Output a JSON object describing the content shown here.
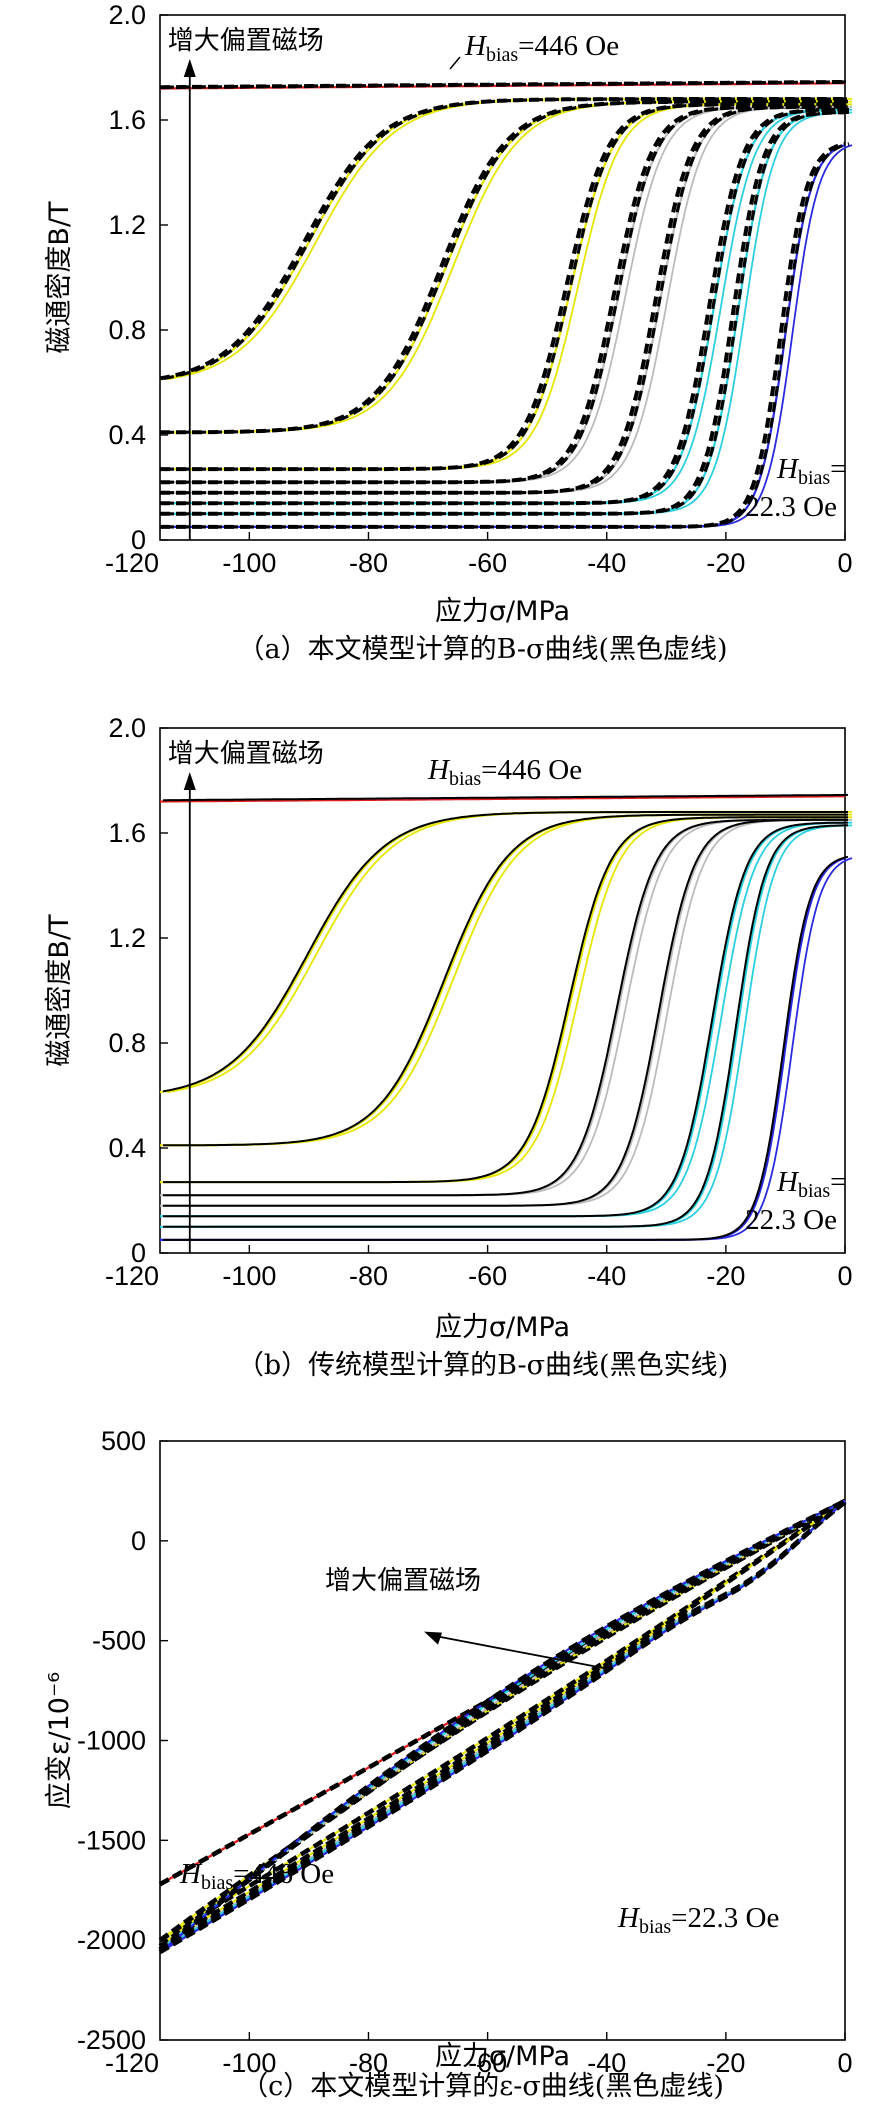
{
  "chart_data": [
    {
      "id": "a",
      "type": "line",
      "caption": "（a）本文模型计算的B-σ曲线(黑色虚线)",
      "xlabel": "应力σ/MPa",
      "ylabel": "磁通密度B/T",
      "xlim": [
        -115,
        0
      ],
      "ylim": [
        0,
        2.0
      ],
      "xticks": [
        "-120",
        "-100",
        "-80",
        "-60",
        "-40",
        "-20",
        "0"
      ],
      "yticks": [
        "0",
        "0.4",
        "0.8",
        "1.2",
        "1.6",
        "2.0"
      ],
      "annotations": {
        "arrow_label": "增大偏置磁场",
        "hbias_high": "446 Oe",
        "hbias_low": "22.3 Oe"
      },
      "model_style": "dashed",
      "series": [
        {
          "color": "#e02020",
          "b0": 1.72,
          "b1": 1.74,
          "center": null,
          "width": null
        },
        {
          "color": "#e6e600",
          "b0": 0.59,
          "b1": 1.68,
          "center": -90,
          "width": 6.5
        },
        {
          "color": "#e6e600",
          "b0": 0.41,
          "b1": 1.67,
          "center": -67,
          "width": 5.5
        },
        {
          "color": "#e6e600",
          "b0": 0.27,
          "b1": 1.66,
          "center": -46,
          "width": 3.5
        },
        {
          "color": "#bbbbbb",
          "b0": 0.22,
          "b1": 1.65,
          "center": -38,
          "width": 3.2
        },
        {
          "color": "#bbbbbb",
          "b0": 0.18,
          "b1": 1.65,
          "center": -31,
          "width": 3.0
        },
        {
          "color": "#2ad0e0",
          "b0": 0.14,
          "b1": 1.64,
          "center": -22,
          "width": 2.8
        },
        {
          "color": "#2ad0e0",
          "b0": 0.1,
          "b1": 1.63,
          "center": -18,
          "width": 2.5
        },
        {
          "color": "#2a2ae0",
          "b0": 0.05,
          "b1": 1.52,
          "center": -10,
          "width": 2.2
        }
      ]
    },
    {
      "id": "b",
      "type": "line",
      "caption": "（b）传统模型计算的B-σ曲线(黑色实线)",
      "xlabel": "应力σ/MPa",
      "ylabel": "磁通密度B/T",
      "xlim": [
        -115,
        0
      ],
      "ylim": [
        0,
        2.0
      ],
      "xticks": [
        "-120",
        "-100",
        "-80",
        "-60",
        "-40",
        "-20",
        "0"
      ],
      "yticks": [
        "0",
        "0.4",
        "0.8",
        "1.2",
        "1.6",
        "2.0"
      ],
      "annotations": {
        "arrow_label": "增大偏置磁场",
        "hbias_high": "446 Oe",
        "hbias_low": "22.3 Oe"
      },
      "model_style": "solid",
      "series": [
        {
          "color": "#e02020",
          "b0": 1.72,
          "b1": 1.74,
          "center": null,
          "width": null
        },
        {
          "color": "#e6e600",
          "b0": 0.59,
          "b1": 1.68,
          "center": -90,
          "width": 6.5
        },
        {
          "color": "#e6e600",
          "b0": 0.41,
          "b1": 1.67,
          "center": -67,
          "width": 5.5
        },
        {
          "color": "#e6e600",
          "b0": 0.27,
          "b1": 1.66,
          "center": -46,
          "width": 3.5
        },
        {
          "color": "#bbbbbb",
          "b0": 0.22,
          "b1": 1.65,
          "center": -38,
          "width": 3.2
        },
        {
          "color": "#bbbbbb",
          "b0": 0.18,
          "b1": 1.65,
          "center": -31,
          "width": 3.0
        },
        {
          "color": "#2ad0e0",
          "b0": 0.14,
          "b1": 1.64,
          "center": -22,
          "width": 2.8
        },
        {
          "color": "#2ad0e0",
          "b0": 0.1,
          "b1": 1.63,
          "center": -18,
          "width": 2.5
        },
        {
          "color": "#2a2ae0",
          "b0": 0.05,
          "b1": 1.52,
          "center": -10,
          "width": 2.2
        }
      ]
    },
    {
      "id": "c",
      "type": "line",
      "caption": "（c）本文模型计算的ε-σ曲线(黑色虚线)",
      "xlabel": "应力σ/MPa",
      "ylabel": "应变ε/10⁻⁶",
      "xlim": [
        -115,
        0
      ],
      "ylim": [
        -2500,
        500
      ],
      "xticks": [
        "-120",
        "-100",
        "-80",
        "-60",
        "-40",
        "-20",
        "0"
      ],
      "yticks": [
        "500",
        "0",
        "-500",
        "-1000",
        "-1500",
        "-2000",
        "-2500"
      ],
      "annotations": {
        "arrow_label": "增大偏置磁场",
        "hbias_high": "446 Oe",
        "hbias_low": "22.3 Oe"
      },
      "series": [
        {
          "color": "#e02020",
          "start": -1720,
          "end": 200
        },
        {
          "color": "#e6e600",
          "start": -2000,
          "end": 200
        },
        {
          "color": "#e6e600",
          "start": -2030,
          "end": 200
        },
        {
          "color": "#bbbbbb",
          "start": -2045,
          "end": 200
        },
        {
          "color": "#2ad0e0",
          "start": -2050,
          "end": 200
        },
        {
          "color": "#2a2ae0",
          "start": -2060,
          "end": 200
        }
      ]
    }
  ]
}
